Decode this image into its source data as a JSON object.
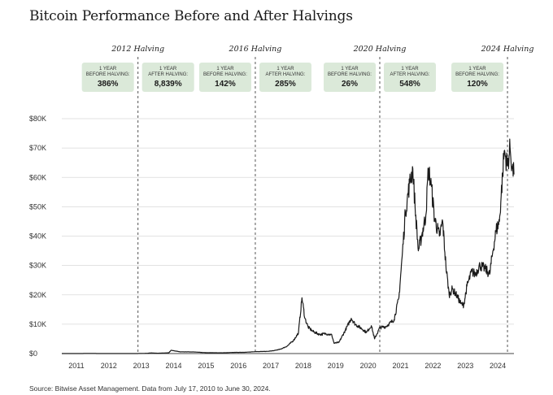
{
  "chart_data": {
    "type": "line",
    "title": "Bitcoin Performance Before and After Halvings",
    "source": "Source: Bitwise Asset Management. Data from July 17, 2010 to June 30, 2024.",
    "xlim": [
      2010.55,
      2024.5
    ],
    "ylim": [
      0,
      80000
    ],
    "x_ticks": [
      2011,
      2012,
      2013,
      2014,
      2015,
      2016,
      2017,
      2018,
      2019,
      2020,
      2021,
      2022,
      2023,
      2024
    ],
    "x_tick_labels": [
      "2011",
      "2012",
      "2013",
      "2014",
      "2015",
      "2016",
      "2017",
      "2018",
      "2019",
      "2020",
      "2021",
      "2022",
      "2023",
      "2024"
    ],
    "y_ticks": [
      0,
      10000,
      20000,
      30000,
      40000,
      50000,
      60000,
      70000,
      80000
    ],
    "y_tick_labels": [
      "$0",
      "$10K",
      "$20K",
      "$30K",
      "$40K",
      "$50K",
      "$60K",
      "$70K",
      "$80K"
    ],
    "grid": "horizontal",
    "halvings": [
      {
        "label": "2012 Halving",
        "x": 2012.9,
        "before_head": "1 YEAR",
        "before_head2": "BEFORE HALVING:",
        "before": "386%",
        "after_head": "1 YEAR",
        "after_head2": "AFTER HALVING:",
        "after": "8,839%"
      },
      {
        "label": "2016 Halving",
        "x": 2016.52,
        "before_head": "1 YEAR",
        "before_head2": "BEFORE HALVING:",
        "before": "142%",
        "after_head": "1 YEAR",
        "after_head2": "AFTER HALVING:",
        "after": "285%"
      },
      {
        "label": "2020 Halving",
        "x": 2020.36,
        "before_head": "1 YEAR",
        "before_head2": "BEFORE HALVING:",
        "before": "26%",
        "after_head": "1 YEAR",
        "after_head2": "AFTER HALVING:",
        "after": "548%"
      },
      {
        "label": "2024 Halving",
        "x": 2024.3,
        "before_head": "1 YEAR",
        "before_head2": "BEFORE HALVING:",
        "before": "120%",
        "after_head": "",
        "after_head2": "",
        "after": ""
      }
    ],
    "series": [
      {
        "x": [
          2010.55,
          2011.0,
          2011.45,
          2011.7,
          2012.0,
          2012.5,
          2012.9,
          2013.2,
          2013.3,
          2013.5,
          2013.85,
          2013.92,
          2014.2,
          2014.6,
          2015.0,
          2015.5,
          2015.9,
          2016.2,
          2016.5,
          2016.9,
          2017.1,
          2017.3,
          2017.5,
          2017.7,
          2017.85,
          2017.96,
          2018.05,
          2018.15,
          2018.3,
          2018.5,
          2018.7,
          2018.88,
          2018.95,
          2019.1,
          2019.3,
          2019.48,
          2019.6,
          2019.8,
          2019.95,
          2020.1,
          2020.2,
          2020.36,
          2020.55,
          2020.8,
          2020.95,
          2021.05,
          2021.15,
          2021.28,
          2021.38,
          2021.45,
          2021.55,
          2021.65,
          2021.78,
          2021.86,
          2021.95,
          2022.05,
          2022.2,
          2022.3,
          2022.4,
          2022.5,
          2022.6,
          2022.75,
          2022.86,
          2022.95,
          2023.05,
          2023.2,
          2023.3,
          2023.45,
          2023.6,
          2023.75,
          2023.85,
          2023.95,
          2024.05,
          2024.15,
          2024.2,
          2024.3,
          2024.38,
          2024.45,
          2024.5
        ],
        "y": [
          0,
          0,
          30,
          5,
          5,
          7,
          12,
          90,
          230,
          100,
          250,
          1100,
          600,
          550,
          300,
          250,
          400,
          420,
          650,
          740,
          1000,
          1500,
          2500,
          4500,
          7000,
          19000,
          12000,
          9000,
          7500,
          6500,
          6800,
          6300,
          3500,
          3800,
          8000,
          12000,
          10000,
          8500,
          7200,
          9500,
          5000,
          8800,
          9200,
          11500,
          19000,
          33000,
          48000,
          58000,
          63000,
          50000,
          35000,
          40000,
          47000,
          63000,
          57000,
          46000,
          40000,
          45000,
          30000,
          20000,
          22000,
          19500,
          17000,
          16500,
          23000,
          28000,
          27000,
          30000,
          29000,
          27000,
          35000,
          42000,
          45000,
          61000,
          69000,
          64000,
          70000,
          63000,
          61000
        ]
      }
    ]
  }
}
